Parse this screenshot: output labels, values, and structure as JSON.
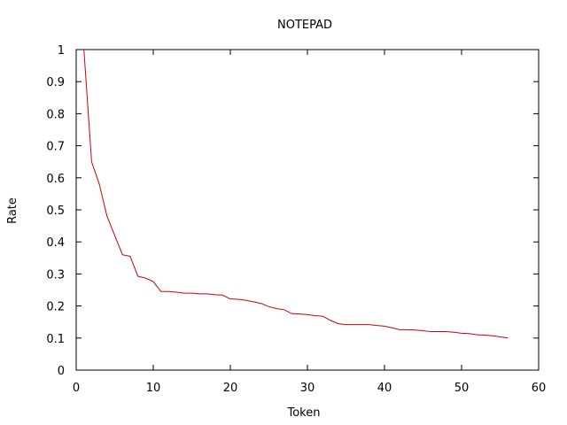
{
  "chart_data": {
    "type": "line",
    "title": "NOTEPAD",
    "xlabel": "Token",
    "ylabel": "Rate",
    "xlim": [
      0,
      60
    ],
    "ylim": [
      0,
      1
    ],
    "xticks": [
      0,
      10,
      20,
      30,
      40,
      50,
      60
    ],
    "yticks": [
      0,
      0.1,
      0.2,
      0.3,
      0.4,
      0.5,
      0.6,
      0.7,
      0.8,
      0.9,
      1
    ],
    "grid": false,
    "line_color": "#cc0000",
    "series": [
      {
        "x": [
          1,
          2,
          3,
          4,
          5,
          6,
          7,
          8,
          9,
          10,
          11,
          12,
          13,
          14,
          15,
          16,
          17,
          18,
          19,
          20,
          21,
          22,
          23,
          24,
          25,
          26,
          27,
          28,
          29,
          30,
          31,
          32,
          33,
          34,
          35,
          36,
          37,
          38,
          39,
          40,
          41,
          42,
          43,
          44,
          45,
          46,
          47,
          48,
          49,
          50,
          51,
          52,
          53,
          54,
          55,
          56
        ],
        "y": [
          1.0,
          0.65,
          0.58,
          0.48,
          0.42,
          0.36,
          0.355,
          0.293,
          0.287,
          0.276,
          0.245,
          0.245,
          0.243,
          0.24,
          0.24,
          0.238,
          0.238,
          0.235,
          0.234,
          0.222,
          0.221,
          0.218,
          0.213,
          0.208,
          0.198,
          0.192,
          0.188,
          0.176,
          0.175,
          0.173,
          0.17,
          0.168,
          0.155,
          0.145,
          0.142,
          0.142,
          0.142,
          0.142,
          0.139,
          0.137,
          0.132,
          0.126,
          0.126,
          0.125,
          0.123,
          0.12,
          0.12,
          0.12,
          0.118,
          0.115,
          0.114,
          0.11,
          0.109,
          0.107,
          0.104,
          0.1
        ]
      }
    ]
  }
}
